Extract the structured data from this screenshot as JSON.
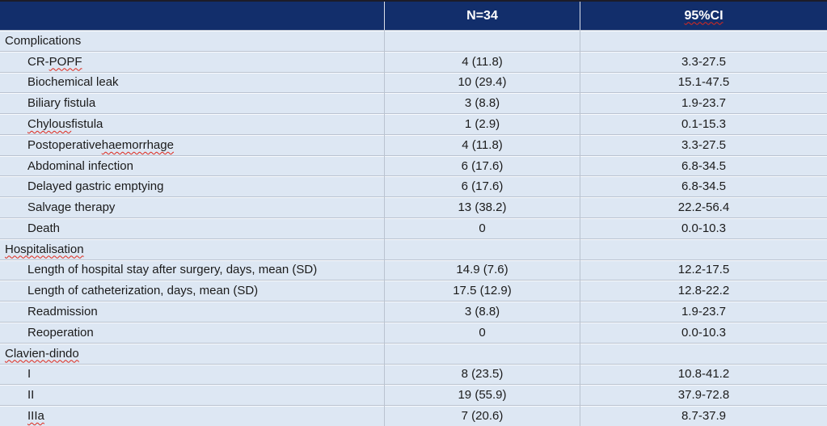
{
  "colors": {
    "header_bg": "#122e6b",
    "header_text": "#ffffff",
    "row_bg": "#dde7f3",
    "grid_line": "#bac3d0",
    "body_text": "#1b1b1b",
    "spellcheck_red": "#de281b",
    "top_edge": "#1c1c28"
  },
  "table": {
    "columns": [
      {
        "label": ""
      },
      {
        "label": "N=34"
      },
      {
        "label": "95%CI",
        "spell": "95%CI"
      }
    ],
    "rows": [
      {
        "type": "section",
        "label": "Complications",
        "n": "",
        "ci": ""
      },
      {
        "type": "item",
        "label": "CR-POPF",
        "spell": "POPF",
        "n": "4 (11.8)",
        "ci": "3.3-27.5"
      },
      {
        "type": "item",
        "label": "Biochemical leak",
        "n": "10 (29.4)",
        "ci": "15.1-47.5"
      },
      {
        "type": "item",
        "label": "Biliary fistula",
        "n": "3 (8.8)",
        "ci": "1.9-23.7"
      },
      {
        "type": "item",
        "label": "Chylous fistula",
        "spell": "Chylous",
        "n": "1 (2.9)",
        "ci": "0.1-15.3"
      },
      {
        "type": "item",
        "label": "Postoperative haemorrhage",
        "spell": "haemorrhage",
        "n": "4 (11.8)",
        "ci": "3.3-27.5"
      },
      {
        "type": "item",
        "label": "Abdominal infection",
        "n": "6 (17.6)",
        "ci": "6.8-34.5"
      },
      {
        "type": "item",
        "label": "Delayed gastric emptying",
        "n": "6 (17.6)",
        "ci": "6.8-34.5"
      },
      {
        "type": "item",
        "label": "Salvage therapy",
        "n": "13 (38.2)",
        "ci": "22.2-56.4"
      },
      {
        "type": "item",
        "label": "Death",
        "n": "0",
        "ci": "0.0-10.3"
      },
      {
        "type": "section",
        "label": "Hospitalisation",
        "spell": "Hospitalisation",
        "n": "",
        "ci": ""
      },
      {
        "type": "item",
        "label": "Length of hospital stay after surgery, days, mean (SD)",
        "n": "14.9 (7.6)",
        "ci": "12.2-17.5"
      },
      {
        "type": "item",
        "label": "Length of catheterization, days, mean (SD)",
        "n": "17.5 (12.9)",
        "ci": "12.8-22.2"
      },
      {
        "type": "item",
        "label": "Readmission",
        "n": "3 (8.8)",
        "ci": "1.9-23.7"
      },
      {
        "type": "item",
        "label": "Reoperation",
        "n": "0",
        "ci": "0.0-10.3"
      },
      {
        "type": "section",
        "label": "Clavien-dindo",
        "spell": "Clavien-dindo",
        "n": "",
        "ci": ""
      },
      {
        "type": "item",
        "label": "I",
        "n": "8 (23.5)",
        "ci": "10.8-41.2"
      },
      {
        "type": "item",
        "label": "II",
        "n": "19 (55.9)",
        "ci": "37.9-72.8"
      },
      {
        "type": "item",
        "label": "IIIa",
        "spell": "IIIa",
        "n": "7 (20.6)",
        "ci": "8.7-37.9"
      }
    ]
  }
}
